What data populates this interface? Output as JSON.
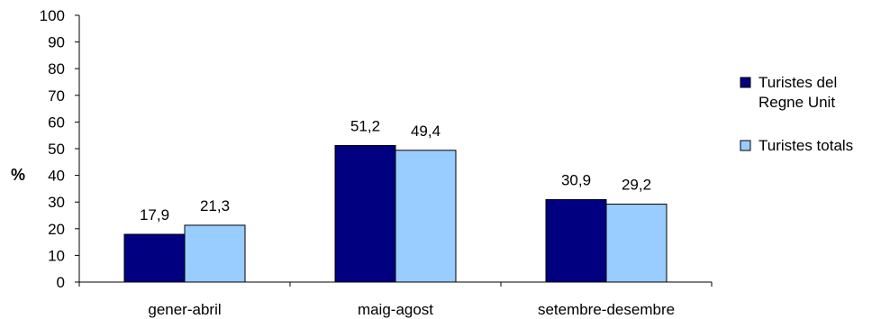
{
  "chart_data": {
    "type": "bar",
    "categories": [
      "gener-abril",
      "maig-agost",
      "setembre-desembre"
    ],
    "series": [
      {
        "name": "Turistes del Regne Unit",
        "legend_lines": [
          "Turistes del",
          "Regne Unit"
        ],
        "values": [
          17.9,
          51.2,
          30.9
        ],
        "value_labels": [
          "17,9",
          "51,2",
          "30,9"
        ],
        "color": "#000080"
      },
      {
        "name": "Turistes totals",
        "legend_lines": [
          "Turistes totals"
        ],
        "values": [
          21.3,
          49.4,
          29.2
        ],
        "value_labels": [
          "21,3",
          "49,4",
          "29,2"
        ],
        "color": "#99ccff"
      }
    ],
    "ylabel": "%",
    "xlabel": "",
    "title": "",
    "ylim": [
      0,
      100
    ],
    "yticks": [
      0,
      10,
      20,
      30,
      40,
      50,
      60,
      70,
      80,
      90,
      100
    ],
    "grid": false,
    "legend_position": "right"
  }
}
